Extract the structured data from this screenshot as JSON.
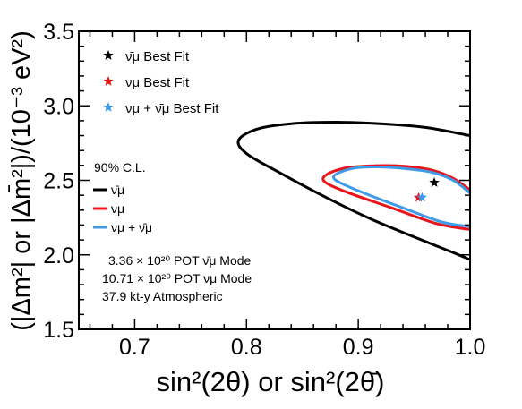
{
  "chart_data": {
    "type": "line",
    "xlabel": "sin²(2θ) or  sin²(2θ̄)",
    "ylabel": "(|Δm²| or |Δm̄²|)/(10⁻³ eV²)",
    "xlim": [
      0.65,
      1.0
    ],
    "ylim": [
      1.5,
      3.5
    ],
    "x_ticks": [
      "0.7",
      "0.8",
      "0.9",
      "1.0"
    ],
    "y_ticks": [
      "1.5",
      "2.0",
      "2.5",
      "3.0",
      "3.5"
    ],
    "grid": false,
    "legend": {
      "placement": "top-left",
      "best_fit_entries": [
        {
          "key": "antinu",
          "label": "ν̄μ Best Fit",
          "color": "#000000"
        },
        {
          "key": "nu",
          "label": "νμ Best Fit",
          "color": "#e8161c"
        },
        {
          "key": "combined",
          "label": "νμ + ν̄μ  Best Fit",
          "color": "#3d9be9"
        }
      ],
      "contour_title": "90% C.L.",
      "contour_entries": [
        {
          "key": "antinu",
          "label": "ν̄μ",
          "color": "#000000"
        },
        {
          "key": "nu",
          "label": "νμ",
          "color": "#e8161c"
        },
        {
          "key": "combined",
          "label": "νμ + ν̄μ",
          "color": "#3d9be9"
        }
      ]
    },
    "annotations": [
      "3.36 × 10²⁰ POT ν̄μ Mode",
      "10.71 × 10²⁰ POT νμ Mode",
      "37.9 kt-y Atmospheric"
    ],
    "series": [
      {
        "key": "antinu",
        "color": "#000000",
        "contour": [
          [
            1.0,
            2.8
          ],
          [
            0.96,
            2.855
          ],
          [
            0.92,
            2.88
          ],
          [
            0.88,
            2.89
          ],
          [
            0.84,
            2.88
          ],
          [
            0.81,
            2.845
          ],
          [
            0.793,
            2.77
          ],
          [
            0.8,
            2.68
          ],
          [
            0.83,
            2.55
          ],
          [
            0.87,
            2.39
          ],
          [
            0.91,
            2.245
          ],
          [
            0.95,
            2.12
          ],
          [
            0.98,
            2.03
          ],
          [
            1.0,
            1.968
          ]
        ],
        "best_fit": [
          0.968,
          2.485
        ]
      },
      {
        "key": "nu",
        "color": "#e8161c",
        "contour": [
          [
            1.0,
            2.435
          ],
          [
            0.985,
            2.513
          ],
          [
            0.965,
            2.57
          ],
          [
            0.94,
            2.595
          ],
          [
            0.915,
            2.598
          ],
          [
            0.89,
            2.585
          ],
          [
            0.872,
            2.54
          ],
          [
            0.87,
            2.49
          ],
          [
            0.89,
            2.42
          ],
          [
            0.93,
            2.315
          ],
          [
            0.97,
            2.21
          ],
          [
            1.0,
            2.17
          ]
        ],
        "best_fit": [
          0.954,
          2.385
        ]
      },
      {
        "key": "combined",
        "color": "#3d9be9",
        "contour": [
          [
            1.0,
            2.415
          ],
          [
            0.985,
            2.5
          ],
          [
            0.965,
            2.555
          ],
          [
            0.94,
            2.58
          ],
          [
            0.915,
            2.59
          ],
          [
            0.895,
            2.58
          ],
          [
            0.88,
            2.54
          ],
          [
            0.88,
            2.5
          ],
          [
            0.9,
            2.43
          ],
          [
            0.94,
            2.315
          ],
          [
            0.975,
            2.22
          ],
          [
            1.0,
            2.19
          ]
        ],
        "best_fit": [
          0.957,
          2.385
        ]
      }
    ]
  }
}
